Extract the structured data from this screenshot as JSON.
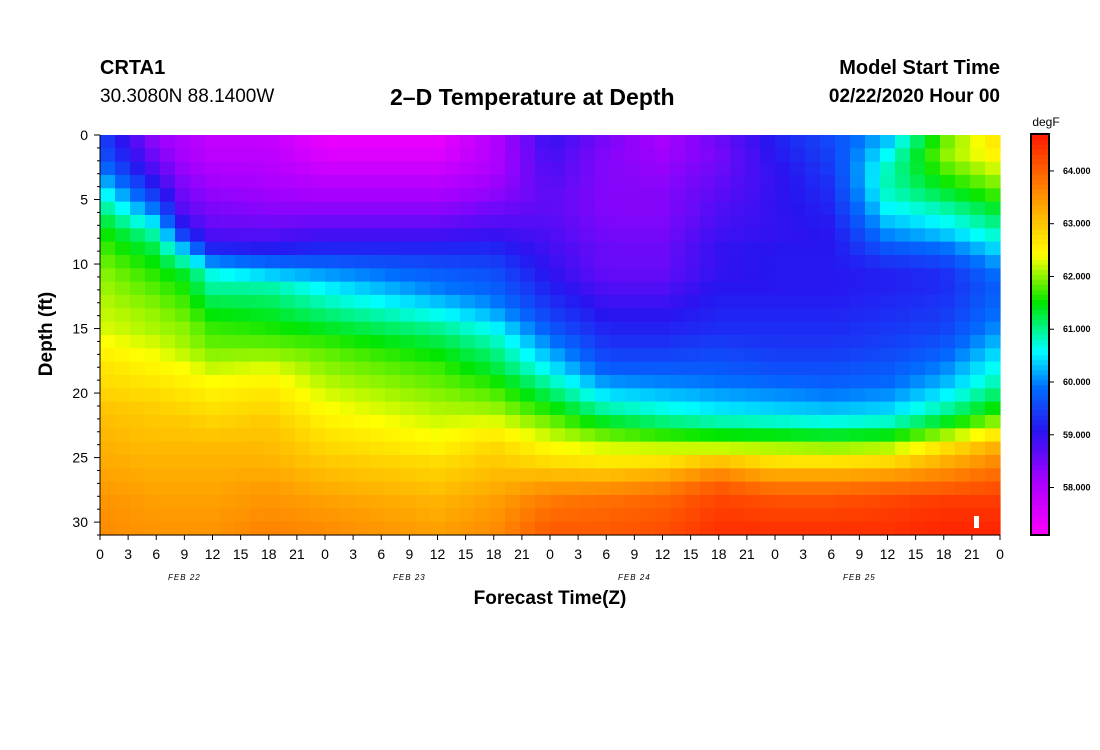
{
  "header": {
    "station": "CRTA1",
    "coords": "30.3080N 88.1400W",
    "title": "2–D Temperature at Depth",
    "model_label": "Model Start Time",
    "model_time": "02/22/2020 Hour 00"
  },
  "chart_data": {
    "type": "heatmap",
    "title": "2–D Temperature at Depth",
    "xlabel": "Forecast Time(Z)",
    "ylabel": "Depth (ft)",
    "x_range": [
      0,
      96
    ],
    "x_unit": "hours from 02/22/2020 00Z",
    "x_tick_labels": [
      "0",
      "3",
      "6",
      "9",
      "12",
      "15",
      "18",
      "21",
      "0",
      "3",
      "6",
      "9",
      "12",
      "15",
      "18",
      "21",
      "0",
      "3",
      "6",
      "9",
      "12",
      "15",
      "18",
      "21",
      "0",
      "3",
      "6",
      "9",
      "12",
      "15",
      "18",
      "21",
      "0"
    ],
    "date_labels": [
      "FEB 22",
      "FEB 23",
      "FEB 24",
      "FEB 25"
    ],
    "y_range": [
      0,
      31
    ],
    "y_ticks": [
      0,
      5,
      10,
      15,
      20,
      25,
      30
    ],
    "y_inverted": true,
    "colorbar": {
      "unit": "degF",
      "range": [
        57.1,
        64.7
      ],
      "ticks": [
        58,
        59,
        60,
        61,
        62,
        63,
        64
      ],
      "tick_labels": [
        "58.000",
        "59.000",
        "60.000",
        "61.000",
        "62.000",
        "63.000",
        "64.000"
      ]
    },
    "depth_levels": [
      0,
      1.5,
      3,
      4.5,
      6,
      7.5,
      9,
      10.5,
      12,
      13.5,
      15,
      16.5,
      18,
      19.5,
      21,
      22.5,
      24,
      25.5,
      27,
      28.5,
      31
    ],
    "time_columns": [
      0,
      6,
      9,
      12,
      18,
      24,
      36,
      42,
      48,
      54,
      60,
      66,
      72,
      78,
      84,
      90,
      96
    ],
    "temperature_grid": [
      [
        59.5,
        58.2,
        58.0,
        57.8,
        57.8,
        57.3,
        57.3,
        58.0,
        59.0,
        58.5,
        58.1,
        58.6,
        59.2,
        59.6,
        60.2,
        61.8,
        62.8
      ],
      [
        59.7,
        58.5,
        58.1,
        57.9,
        57.9,
        57.5,
        57.5,
        58.0,
        58.9,
        58.4,
        58.2,
        58.5,
        59.1,
        59.5,
        60.6,
        62.0,
        62.6
      ],
      [
        60.1,
        58.8,
        58.3,
        58.1,
        58.0,
        57.8,
        57.8,
        58.1,
        58.8,
        58.4,
        58.3,
        58.6,
        59.0,
        59.4,
        60.9,
        61.7,
        62.2
      ],
      [
        60.7,
        59.3,
        58.5,
        58.3,
        58.2,
        58.1,
        58.1,
        58.3,
        58.7,
        58.4,
        58.4,
        58.7,
        59.0,
        59.3,
        60.8,
        61.3,
        61.8
      ],
      [
        61.2,
        60.0,
        58.7,
        58.5,
        58.4,
        58.4,
        58.4,
        58.6,
        58.7,
        58.4,
        58.4,
        58.8,
        59.0,
        59.2,
        60.5,
        60.8,
        61.3
      ],
      [
        61.6,
        60.8,
        59.2,
        58.7,
        58.7,
        58.8,
        58.8,
        58.9,
        58.8,
        58.5,
        58.5,
        58.9,
        59.0,
        59.1,
        60.1,
        60.4,
        60.9
      ],
      [
        61.8,
        61.3,
        60.4,
        59.3,
        59.2,
        59.3,
        59.3,
        59.3,
        58.9,
        58.6,
        58.6,
        59.0,
        59.1,
        59.1,
        59.6,
        59.8,
        60.4
      ],
      [
        62.0,
        61.6,
        61.3,
        60.6,
        60.2,
        60.0,
        59.7,
        59.6,
        59.0,
        58.6,
        58.6,
        59.0,
        59.1,
        59.1,
        59.2,
        59.3,
        60.0
      ],
      [
        62.1,
        61.8,
        61.6,
        61.0,
        61.0,
        60.6,
        60.0,
        59.8,
        59.2,
        58.8,
        58.8,
        59.1,
        59.1,
        59.1,
        59.2,
        59.3,
        59.8
      ],
      [
        62.2,
        62.0,
        61.8,
        61.4,
        61.3,
        61.0,
        60.5,
        60.1,
        59.4,
        59.0,
        59.0,
        59.2,
        59.2,
        59.2,
        59.3,
        59.4,
        59.9
      ],
      [
        62.3,
        62.1,
        62.0,
        61.7,
        61.6,
        61.4,
        61.0,
        60.6,
        59.7,
        59.2,
        59.2,
        59.3,
        59.3,
        59.3,
        59.4,
        59.5,
        60.1
      ],
      [
        62.5,
        62.3,
        62.1,
        61.9,
        61.9,
        61.8,
        61.4,
        61.0,
        60.1,
        59.4,
        59.4,
        59.5,
        59.4,
        59.4,
        59.5,
        59.7,
        60.4
      ],
      [
        62.7,
        62.5,
        62.4,
        62.2,
        62.3,
        62.0,
        61.7,
        61.3,
        60.5,
        59.7,
        59.7,
        59.7,
        59.6,
        59.6,
        59.7,
        60.0,
        60.7
      ],
      [
        62.8,
        62.7,
        62.6,
        62.5,
        62.6,
        62.2,
        61.9,
        61.7,
        61.0,
        60.2,
        60.1,
        60.0,
        59.9,
        59.8,
        59.9,
        60.3,
        61.0
      ],
      [
        63.0,
        62.9,
        62.8,
        62.7,
        62.8,
        62.4,
        62.1,
        62.0,
        61.5,
        60.8,
        60.6,
        60.4,
        60.3,
        60.2,
        60.3,
        60.8,
        61.5
      ],
      [
        63.1,
        63.0,
        63.0,
        62.9,
        63.0,
        62.6,
        62.3,
        62.4,
        62.0,
        61.5,
        61.2,
        61.0,
        60.9,
        60.8,
        60.9,
        61.5,
        62.2
      ],
      [
        63.2,
        63.1,
        63.1,
        63.1,
        63.1,
        62.8,
        62.5,
        62.8,
        62.4,
        62.2,
        62.1,
        62.0,
        62.0,
        61.9,
        62.0,
        62.6,
        63.2
      ],
      [
        63.3,
        63.2,
        63.2,
        63.2,
        63.2,
        63.0,
        62.8,
        63.0,
        62.8,
        62.7,
        62.8,
        63.2,
        62.8,
        62.8,
        62.9,
        63.3,
        63.7
      ],
      [
        63.4,
        63.3,
        63.3,
        63.3,
        63.4,
        63.2,
        63.0,
        63.2,
        63.4,
        63.4,
        63.6,
        64.0,
        63.7,
        63.7,
        63.8,
        63.9,
        64.1
      ],
      [
        63.5,
        63.4,
        63.4,
        63.4,
        63.5,
        63.4,
        63.2,
        63.4,
        63.8,
        63.9,
        64.0,
        64.3,
        64.2,
        64.2,
        64.3,
        64.4,
        64.4
      ],
      [
        63.6,
        63.5,
        63.5,
        63.5,
        63.7,
        63.6,
        63.4,
        63.6,
        64.1,
        64.1,
        64.2,
        64.5,
        64.5,
        64.5,
        64.5,
        64.6,
        64.6
      ]
    ]
  }
}
